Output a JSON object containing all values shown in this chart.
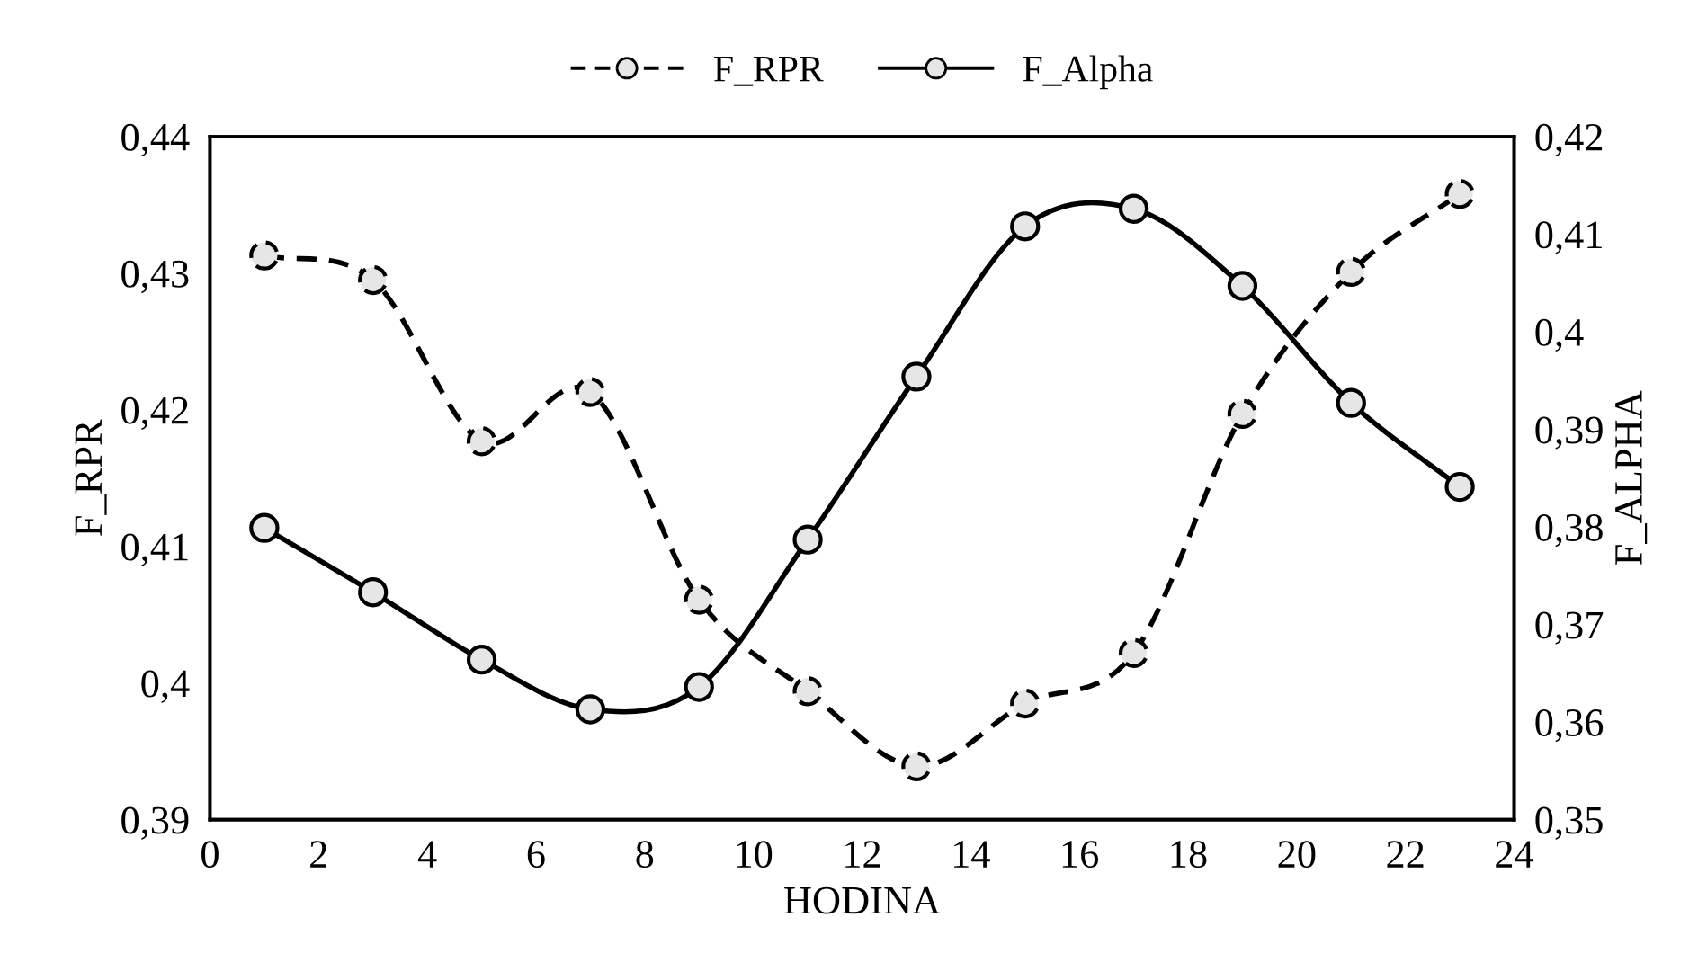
{
  "chart_data": {
    "type": "line",
    "xlabel": "HODINA",
    "ylabel": "F_RPR",
    "y2label": "F_ALPHA",
    "x": [
      1,
      3,
      5,
      7,
      9,
      11,
      13,
      15,
      17,
      19,
      21,
      23
    ],
    "series": [
      {
        "name": "F_RPR",
        "color": "#000000",
        "line_style": "dashed",
        "values": [
          0.4313,
          0.4295,
          0.4177,
          0.4213,
          0.4061,
          0.3994,
          0.3939,
          0.3985,
          0.4022,
          0.4197,
          0.4301,
          0.4358
        ]
      },
      {
        "name": "F_Alpha",
        "color": "#000000",
        "line_style": "solid",
        "axis": "y2",
        "values": [
          0.3799,
          0.3733,
          0.3664,
          0.3613,
          0.3636,
          0.3787,
          0.3954,
          0.4108,
          0.4126,
          0.4047,
          0.3927,
          0.3841
        ]
      }
    ],
    "marker": "circle",
    "grid": false,
    "legend": "top",
    "xlim": [
      0,
      24
    ],
    "xticks": [
      0,
      2,
      4,
      6,
      8,
      10,
      12,
      14,
      16,
      18,
      20,
      22,
      24
    ],
    "ylim": [
      0.39,
      0.44
    ],
    "yticks": [
      {
        "value": 0.39,
        "label": "0,39"
      },
      {
        "value": 0.4,
        "label": "0,4"
      },
      {
        "value": 0.41,
        "label": "0,41"
      },
      {
        "value": 0.42,
        "label": "0,42"
      },
      {
        "value": 0.43,
        "label": "0,43"
      },
      {
        "value": 0.44,
        "label": "0,44"
      }
    ],
    "y2lim": [
      0.35,
      0.42
    ],
    "y2ticks": [
      {
        "value": 0.35,
        "label": "0,35"
      },
      {
        "value": 0.36,
        "label": "0,36"
      },
      {
        "value": 0.37,
        "label": "0,37"
      },
      {
        "value": 0.38,
        "label": "0,38"
      },
      {
        "value": 0.39,
        "label": "0,39"
      },
      {
        "value": 0.4,
        "label": "0,4"
      },
      {
        "value": 0.41,
        "label": "0,41"
      },
      {
        "value": 0.42,
        "label": "0,42"
      }
    ]
  }
}
